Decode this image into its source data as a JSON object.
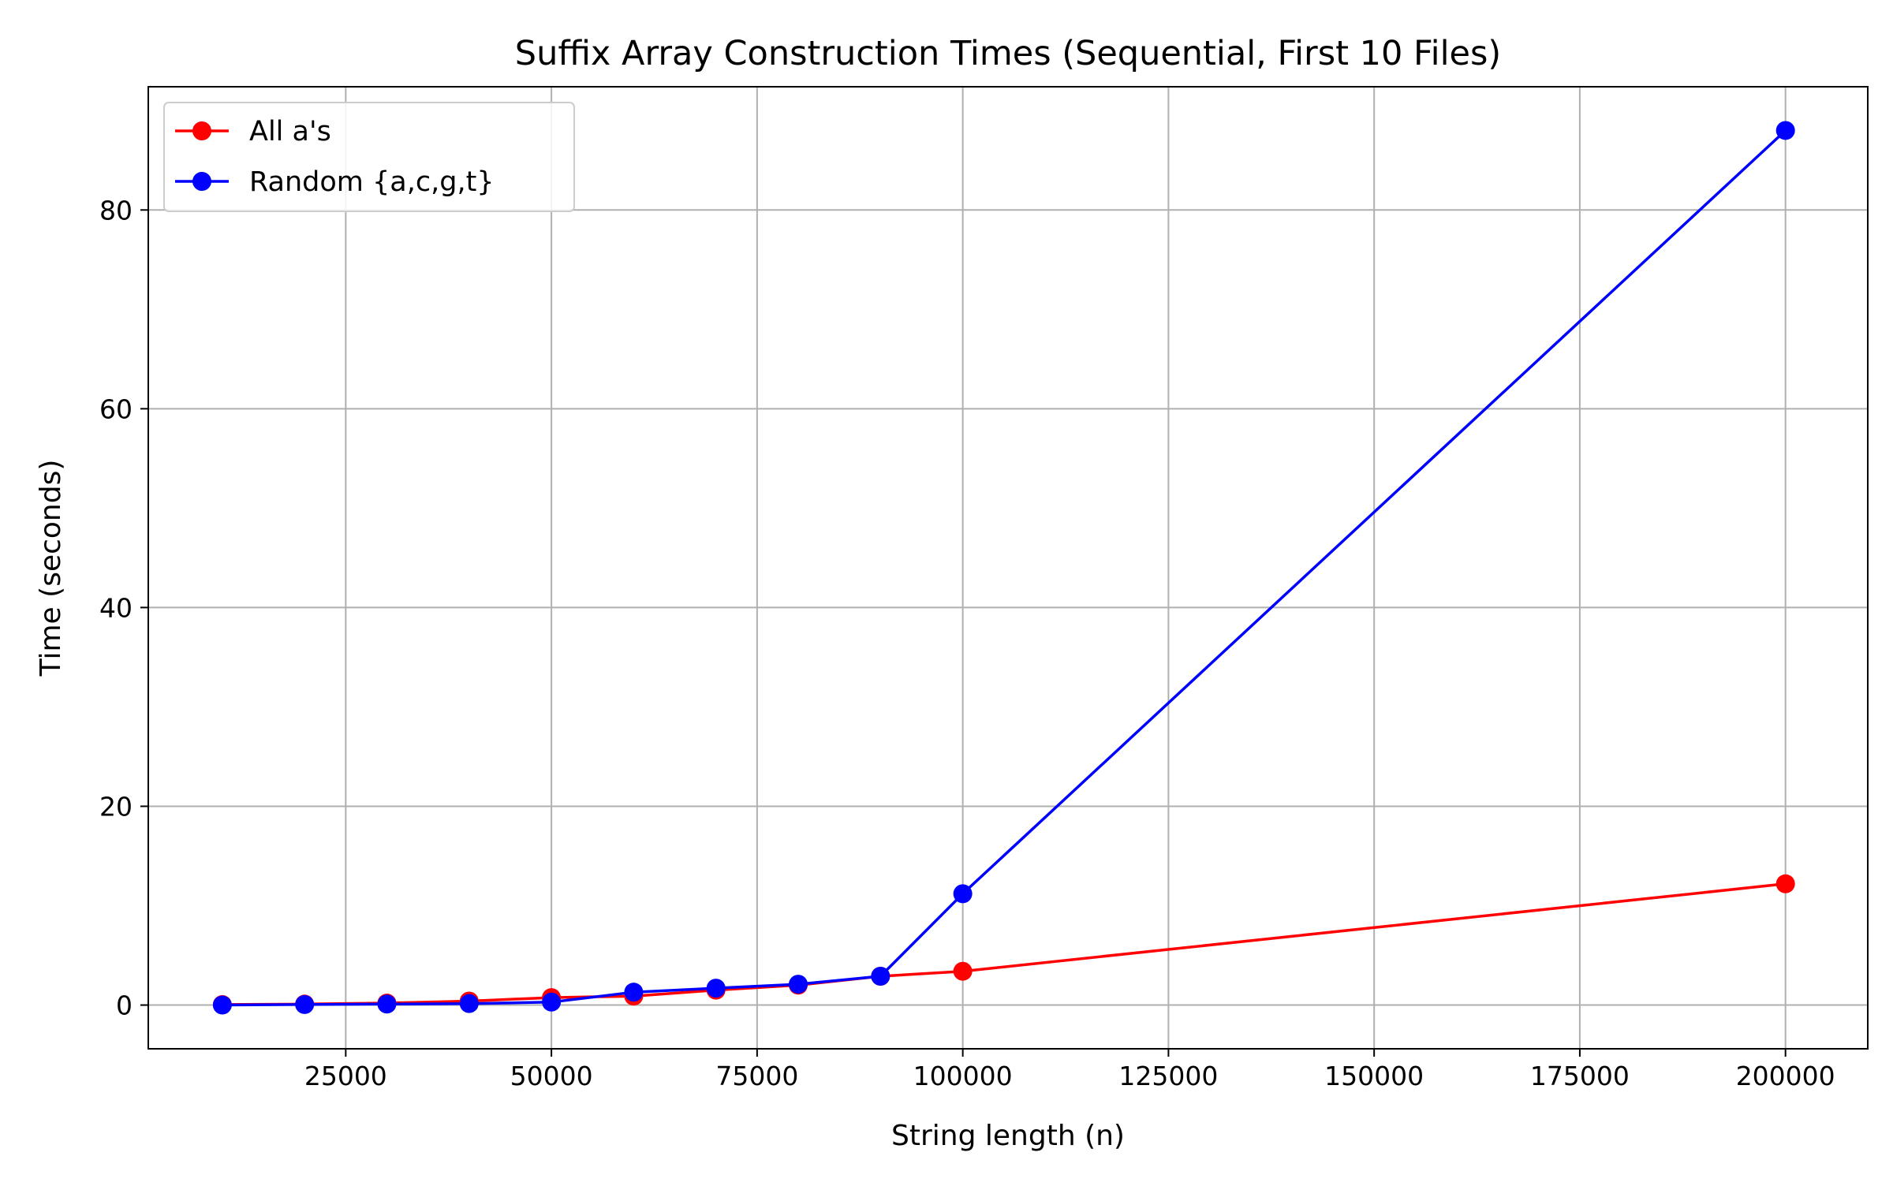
{
  "chart_data": {
    "type": "line",
    "title": "Suffix Array Construction Times (Sequential, First 10 Files)",
    "xlabel": "String length (n)",
    "ylabel": "Time (seconds)",
    "xlim": [
      1000,
      210000
    ],
    "ylim": [
      -4.4,
      92.4
    ],
    "xticks": [
      25000,
      50000,
      75000,
      100000,
      125000,
      150000,
      175000,
      200000
    ],
    "yticks": [
      0,
      20,
      40,
      60,
      80
    ],
    "grid": true,
    "legend_position": "top-left",
    "x": [
      10000,
      20000,
      30000,
      40000,
      50000,
      60000,
      70000,
      80000,
      90000,
      100000,
      200000
    ],
    "series": [
      {
        "name": "All a's",
        "color": "#ff0000",
        "values": [
          0.05,
          0.1,
          0.2,
          0.4,
          0.75,
          0.9,
          1.5,
          2.0,
          2.9,
          3.4,
          12.2
        ]
      },
      {
        "name": "Random {a,c,g,t}",
        "color": "#0000ff",
        "values": [
          0.0,
          0.05,
          0.1,
          0.15,
          0.3,
          1.3,
          1.7,
          2.1,
          2.9,
          11.2,
          88.0
        ]
      }
    ]
  }
}
